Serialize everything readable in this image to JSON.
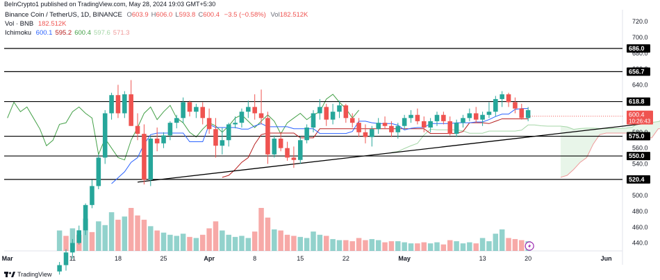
{
  "header": {
    "publisher_line": "BeInCrypto1 published on TradingView.com, May 28, 2024 19:03 GMT+5:30"
  },
  "legend": {
    "symbol": "Binance Coin / TetherUS, 1D, BINANCE",
    "ohlc": [
      {
        "k": "O",
        "v": "603.9"
      },
      {
        "k": "H",
        "v": "606.0"
      },
      {
        "k": "L",
        "v": "593.8"
      },
      {
        "k": "C",
        "v": "600.4"
      }
    ],
    "change": "−3.5 (−0.58%)",
    "vol_label": "Vol",
    "vol_value": "182.512K",
    "vol_line_label": "Vol · BNB",
    "vol_line_value": "182.512K",
    "ichimoku_label": "Ichimoku",
    "ichimoku_values": [
      "600.1",
      "595.2",
      "600.4",
      "597.6",
      "571.3"
    ]
  },
  "footer": {
    "brand": "TradingView"
  },
  "colors": {
    "up": "#26a69a",
    "down": "#ef5350",
    "tenkan": "#2962ff",
    "kijun": "#b71c1c",
    "chikou": "#43a047",
    "span_a": "#a5d6a7",
    "span_b": "#ef9a9a",
    "cloud_fill": "#e8f5e9",
    "price_tag": "#ef5350",
    "hline": "#000000"
  },
  "chart_data": {
    "type": "candlestick",
    "y_axis": {
      "min": 430,
      "max": 735,
      "ticks": [
        440,
        460,
        480,
        500,
        520,
        540,
        560,
        580,
        600,
        620,
        640,
        660,
        680,
        700,
        720
      ],
      "side": "right"
    },
    "x_axis": {
      "labels": [
        "Mar",
        "11",
        "18",
        "25",
        "Apr",
        "8",
        "15",
        "22",
        "May",
        "13",
        "20",
        "Jun"
      ],
      "label_index": [
        0,
        10,
        17,
        24,
        31,
        38,
        45,
        52,
        61,
        73,
        80,
        92
      ]
    },
    "horizontal_levels": [
      686.0,
      656.7,
      618.8,
      575.0,
      550.0,
      520.4
    ],
    "trendline": {
      "from": {
        "i": 20,
        "price": 517
      },
      "to": {
        "i": 99,
        "price": 592
      }
    },
    "last_price": {
      "value": "600.4",
      "countdown": "10:26:43"
    },
    "candles": [
      [
        null,
        null,
        null,
        null
      ],
      [
        null,
        null,
        null,
        null
      ],
      [
        null,
        null,
        null,
        null
      ],
      [
        null,
        null,
        null,
        null
      ],
      [
        null,
        null,
        null,
        null
      ],
      [
        null,
        null,
        null,
        null
      ],
      [
        null,
        null,
        null,
        null
      ],
      [
        null,
        null,
        null,
        null
      ],
      [
        404,
        416,
        400,
        412
      ],
      [
        412,
        432,
        405,
        428
      ],
      [
        428,
        445,
        420,
        440
      ],
      [
        440,
        462,
        438,
        456
      ],
      [
        456,
        490,
        450,
        488
      ],
      [
        488,
        520,
        484,
        512
      ],
      [
        512,
        552,
        508,
        548
      ],
      [
        548,
        608,
        540,
        604
      ],
      [
        604,
        630,
        596,
        627
      ],
      [
        627,
        640,
        598,
        604
      ],
      [
        604,
        632,
        598,
        628
      ],
      [
        628,
        646,
        588,
        588
      ],
      [
        588,
        604,
        570,
        578
      ],
      [
        578,
        590,
        514,
        520
      ],
      [
        520,
        575,
        512,
        572
      ],
      [
        572,
        586,
        556,
        566
      ],
      [
        566,
        580,
        560,
        576
      ],
      [
        576,
        594,
        570,
        592
      ],
      [
        592,
        602,
        585,
        598
      ],
      [
        598,
        624,
        592,
        618
      ],
      [
        618,
        620,
        600,
        606
      ],
      [
        606,
        616,
        598,
        612
      ],
      [
        612,
        618,
        590,
        598
      ],
      [
        598,
        610,
        578,
        584
      ],
      [
        584,
        598,
        548,
        563
      ],
      [
        563,
        586,
        552,
        570
      ],
      [
        570,
        592,
        562,
        590
      ],
      [
        590,
        600,
        585,
        592
      ],
      [
        592,
        610,
        586,
        606
      ],
      [
        606,
        620,
        598,
        612
      ],
      [
        612,
        628,
        596,
        604
      ],
      [
        604,
        634,
        590,
        598
      ],
      [
        598,
        606,
        540,
        552
      ],
      [
        552,
        576,
        548,
        572
      ],
      [
        572,
        580,
        556,
        560
      ],
      [
        560,
        568,
        544,
        548
      ],
      [
        548,
        562,
        535,
        545
      ],
      [
        545,
        575,
        540,
        570
      ],
      [
        570,
        590,
        566,
        586
      ],
      [
        586,
        608,
        580,
        604
      ],
      [
        604,
        622,
        596,
        612
      ],
      [
        612,
        616,
        588,
        596
      ],
      [
        596,
        616,
        590,
        606
      ],
      [
        606,
        620,
        598,
        614
      ],
      [
        614,
        616,
        592,
        598
      ],
      [
        598,
        604,
        586,
        592
      ],
      [
        592,
        598,
        574,
        580
      ],
      [
        580,
        590,
        566,
        574
      ],
      [
        574,
        588,
        562,
        584
      ],
      [
        584,
        598,
        578,
        592
      ],
      [
        592,
        600,
        584,
        588
      ],
      [
        588,
        594,
        574,
        580
      ],
      [
        580,
        592,
        572,
        588
      ],
      [
        588,
        602,
        584,
        598
      ],
      [
        598,
        608,
        592,
        602
      ],
      [
        602,
        610,
        590,
        594
      ],
      [
        594,
        600,
        580,
        586
      ],
      [
        586,
        598,
        580,
        594
      ],
      [
        594,
        606,
        588,
        602
      ],
      [
        602,
        606,
        590,
        594
      ],
      [
        594,
        600,
        576,
        578
      ],
      [
        578,
        596,
        574,
        592
      ],
      [
        592,
        602,
        586,
        598
      ],
      [
        598,
        610,
        594,
        604
      ],
      [
        604,
        612,
        592,
        596
      ],
      [
        596,
        606,
        588,
        602
      ],
      [
        602,
        618,
        598,
        606
      ],
      [
        606,
        626,
        600,
        622
      ],
      [
        622,
        632,
        612,
        628
      ],
      [
        628,
        630,
        612,
        618
      ],
      [
        618,
        624,
        604,
        610
      ],
      [
        610,
        616,
        596,
        598
      ],
      [
        598,
        612,
        594,
        608
      ]
    ],
    "volume": [
      [
        null,
        null
      ],
      [
        null,
        null
      ],
      [
        null,
        null
      ],
      [
        null,
        null
      ],
      [
        null,
        null
      ],
      [
        null,
        null
      ],
      [
        null,
        null
      ],
      [
        null,
        null
      ],
      [
        38,
        1
      ],
      [
        28,
        0
      ],
      [
        42,
        1
      ],
      [
        30,
        0
      ],
      [
        60,
        1
      ],
      [
        35,
        0
      ],
      [
        55,
        1
      ],
      [
        48,
        1
      ],
      [
        72,
        1
      ],
      [
        58,
        0
      ],
      [
        64,
        1
      ],
      [
        80,
        0
      ],
      [
        66,
        0
      ],
      [
        58,
        0
      ],
      [
        46,
        1
      ],
      [
        38,
        0
      ],
      [
        34,
        1
      ],
      [
        30,
        1
      ],
      [
        28,
        1
      ],
      [
        32,
        1
      ],
      [
        26,
        0
      ],
      [
        24,
        1
      ],
      [
        30,
        0
      ],
      [
        42,
        0
      ],
      [
        55,
        0
      ],
      [
        38,
        1
      ],
      [
        30,
        1
      ],
      [
        26,
        1
      ],
      [
        28,
        1
      ],
      [
        24,
        1
      ],
      [
        36,
        0
      ],
      [
        80,
        0
      ],
      [
        62,
        0
      ],
      [
        40,
        1
      ],
      [
        38,
        0
      ],
      [
        30,
        0
      ],
      [
        28,
        0
      ],
      [
        26,
        1
      ],
      [
        24,
        1
      ],
      [
        36,
        1
      ],
      [
        30,
        1
      ],
      [
        28,
        0
      ],
      [
        22,
        1
      ],
      [
        20,
        1
      ],
      [
        20,
        0
      ],
      [
        18,
        0
      ],
      [
        24,
        0
      ],
      [
        20,
        0
      ],
      [
        22,
        1
      ],
      [
        20,
        1
      ],
      [
        16,
        0
      ],
      [
        18,
        0
      ],
      [
        18,
        1
      ],
      [
        16,
        1
      ],
      [
        14,
        1
      ],
      [
        14,
        0
      ],
      [
        16,
        0
      ],
      [
        14,
        1
      ],
      [
        16,
        1
      ],
      [
        12,
        0
      ],
      [
        20,
        0
      ],
      [
        18,
        1
      ],
      [
        14,
        1
      ],
      [
        16,
        1
      ],
      [
        14,
        0
      ],
      [
        24,
        1
      ],
      [
        18,
        1
      ],
      [
        32,
        1
      ],
      [
        40,
        1
      ],
      [
        24,
        0
      ],
      [
        22,
        0
      ],
      [
        20,
        0
      ],
      [
        18,
        1
      ]
    ]
  }
}
